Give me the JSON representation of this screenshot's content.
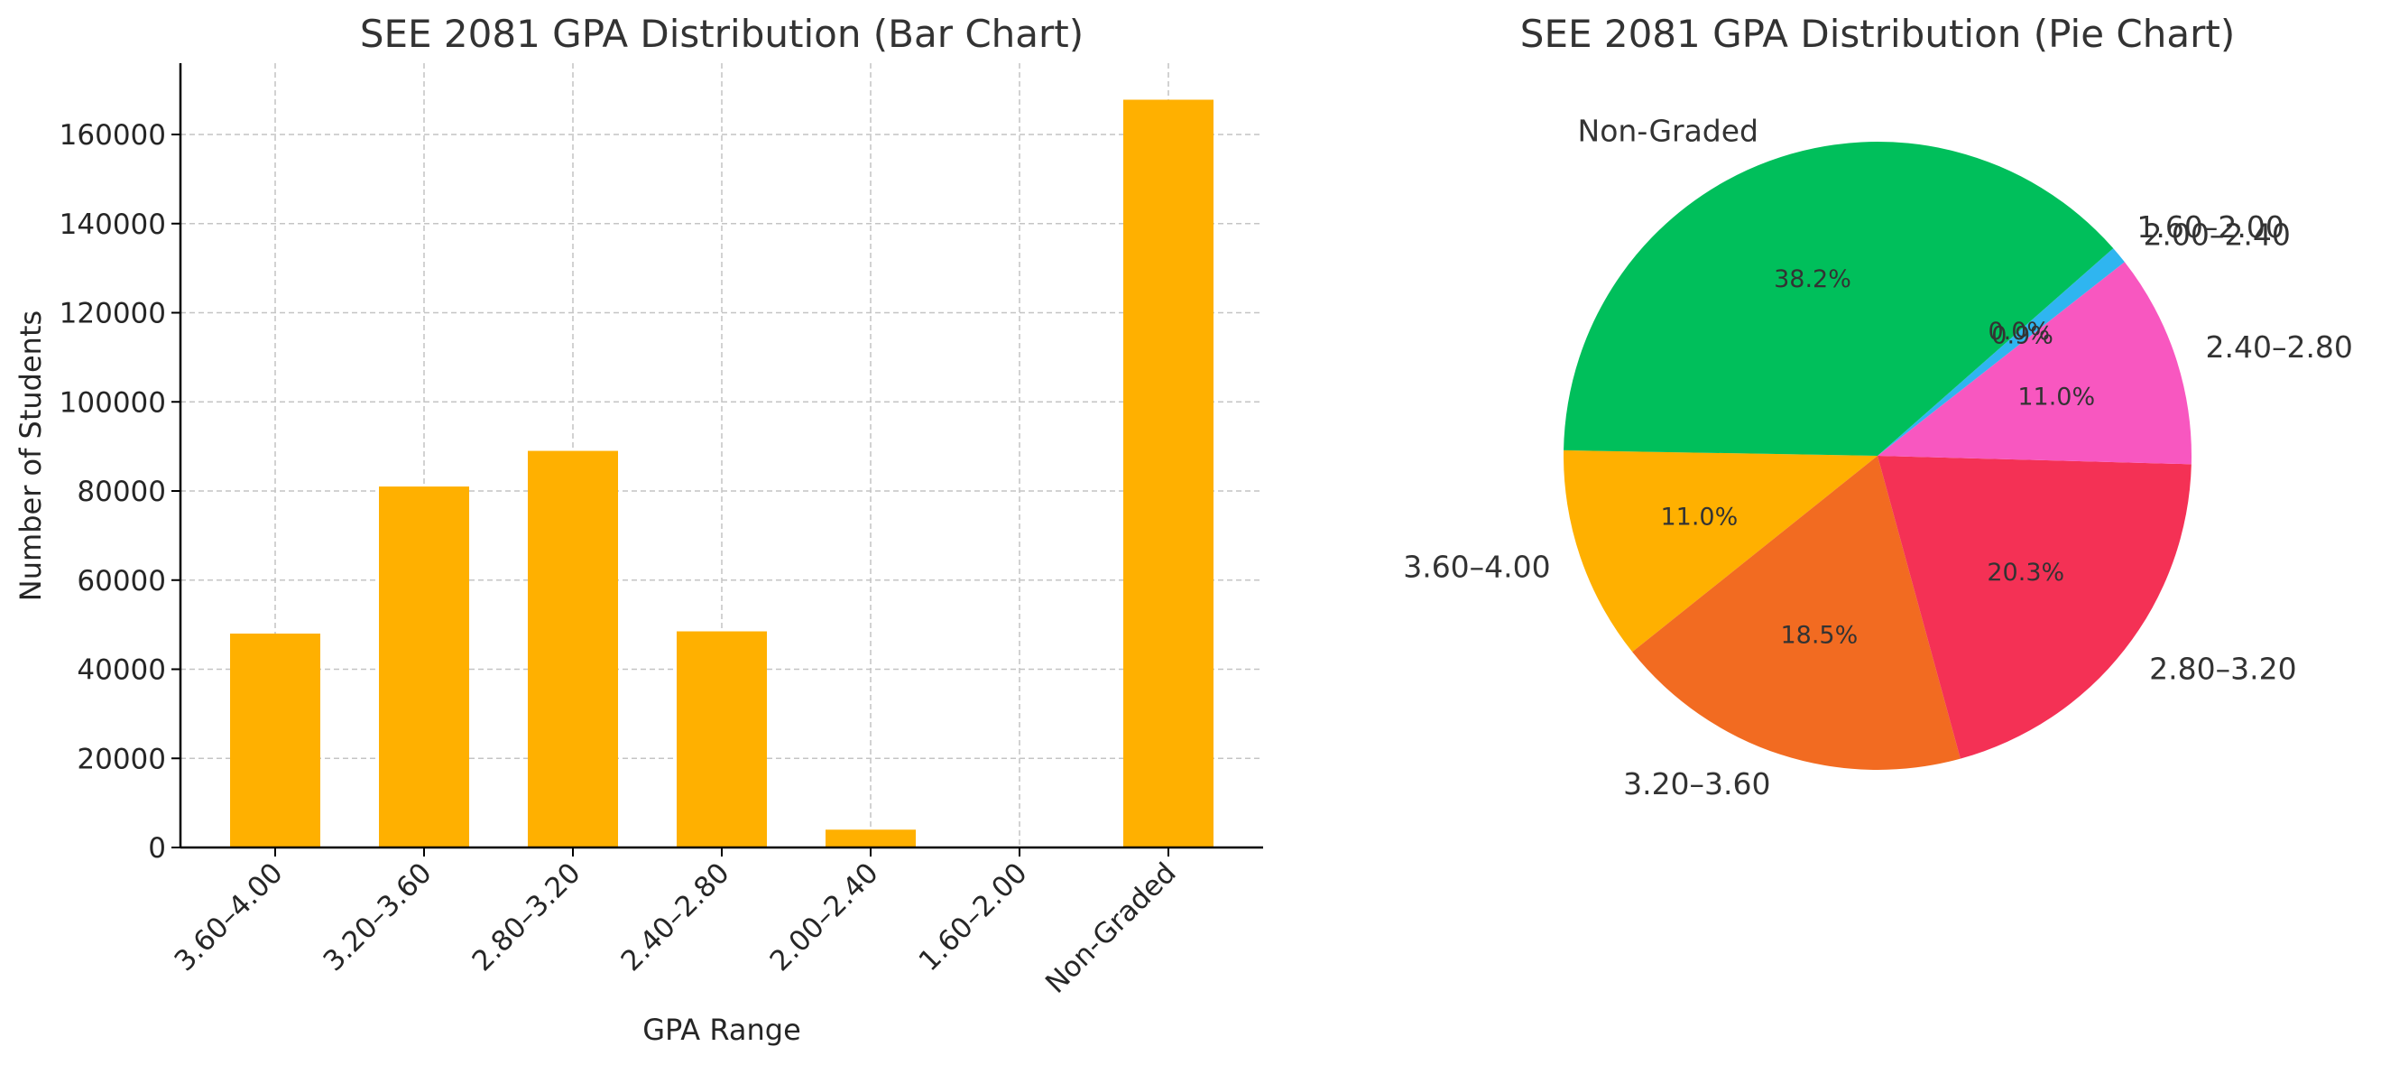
{
  "chart_data": [
    {
      "type": "bar",
      "title": "SEE 2081 GPA Distribution (Bar Chart)",
      "xlabel": "GPA Range",
      "ylabel": "Number of Students",
      "categories": [
        "3.60–4.00",
        "3.20–3.60",
        "2.80–3.20",
        "2.40–2.80",
        "2.00–2.40",
        "1.60–2.00",
        "Non-Graded"
      ],
      "values": [
        48000,
        81000,
        89000,
        48500,
        4000,
        50,
        167800
      ],
      "ylim": [
        0,
        176000
      ],
      "yticks": [
        0,
        20000,
        40000,
        60000,
        80000,
        100000,
        120000,
        140000,
        160000
      ],
      "grid": true,
      "bar_color": "#FFB000"
    },
    {
      "type": "pie",
      "title": "SEE 2081 GPA Distribution (Pie Chart)",
      "labels": [
        "3.60–4.00",
        "3.20–3.60",
        "2.80–3.20",
        "2.40–2.80",
        "2.00–2.40",
        "1.60–2.00",
        "Non-Graded"
      ],
      "values": [
        11.0,
        18.5,
        20.3,
        11.0,
        0.9,
        0.0,
        38.2
      ],
      "pct_labels": [
        "11.0%",
        "18.5%",
        "20.3%",
        "11.0%",
        "0.9%",
        "0.0%",
        "38.2%"
      ],
      "colors": [
        "#FFB000",
        "#F26B21",
        "#F43155",
        "#F857C0",
        "#2FB5F0",
        "#1E90FF",
        "#00BF5B"
      ]
    }
  ]
}
